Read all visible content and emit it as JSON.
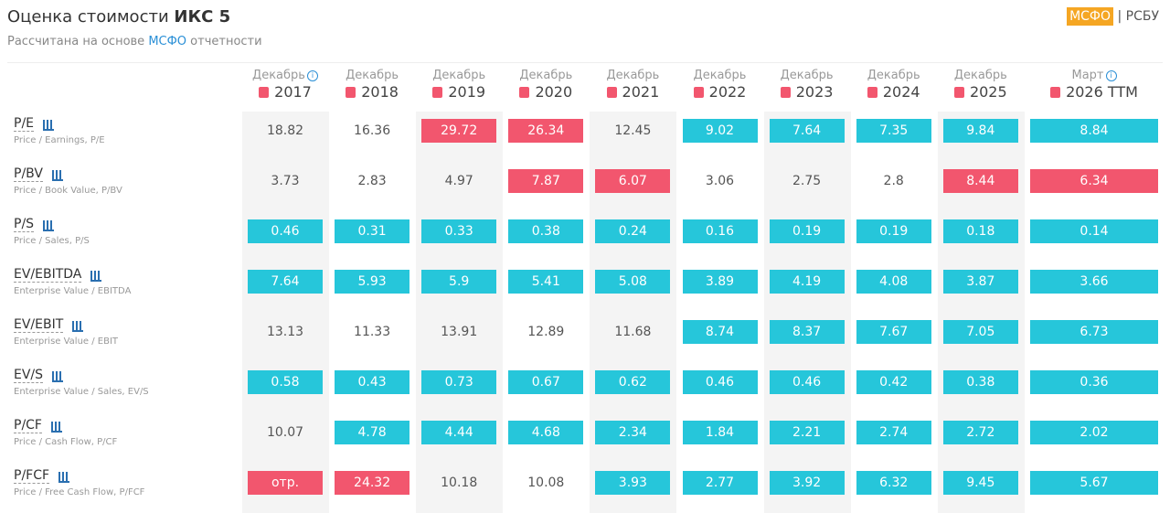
{
  "header": {
    "title": "Оценка стоимости ",
    "company": "ИКС 5",
    "subtitle_pre": "Рассчитана на основе ",
    "subtitle_link": "МСФО",
    "subtitle_post": " отчетности",
    "tabs": [
      "МСФО",
      "РСБУ"
    ]
  },
  "colors": {
    "blue": "#26c6da",
    "red": "#f2566e"
  },
  "columns": [
    {
      "month": "Декабрь",
      "year": "2017",
      "info": true
    },
    {
      "month": "Декабрь",
      "year": "2018"
    },
    {
      "month": "Декабрь",
      "year": "2019"
    },
    {
      "month": "Декабрь",
      "year": "2020"
    },
    {
      "month": "Декабрь",
      "year": "2021"
    },
    {
      "month": "Декабрь",
      "year": "2022"
    },
    {
      "month": "Декабрь",
      "year": "2023"
    },
    {
      "month": "Декабрь",
      "year": "2024"
    },
    {
      "month": "Декабрь",
      "year": "2025"
    },
    {
      "month": "Март",
      "year": "2026 TTM",
      "info": true
    }
  ],
  "rows": [
    {
      "label": "P/E",
      "sub": "Price / Earnings, P/E",
      "cells": [
        {
          "v": 18.82
        },
        {
          "v": 16.36
        },
        {
          "v": 29.72,
          "hl": "red"
        },
        {
          "v": 26.34,
          "hl": "red"
        },
        {
          "v": 12.45
        },
        {
          "v": 9.02,
          "hl": "blue"
        },
        {
          "v": 7.64,
          "hl": "blue"
        },
        {
          "v": 7.35,
          "hl": "blue"
        },
        {
          "v": 9.84,
          "hl": "blue"
        },
        {
          "v": 8.84,
          "hl": "blue"
        }
      ]
    },
    {
      "label": "P/BV",
      "sub": "Price / Book Value, P/BV",
      "cells": [
        {
          "v": 3.73
        },
        {
          "v": 2.83
        },
        {
          "v": 4.97
        },
        {
          "v": 7.87,
          "hl": "red"
        },
        {
          "v": 6.07,
          "hl": "red"
        },
        {
          "v": 3.06
        },
        {
          "v": 2.75
        },
        {
          "v": 2.8
        },
        {
          "v": 8.44,
          "hl": "red"
        },
        {
          "v": 6.34,
          "hl": "red"
        }
      ]
    },
    {
      "label": "P/S",
      "sub": "Price / Sales, P/S",
      "cells": [
        {
          "v": 0.46,
          "hl": "blue"
        },
        {
          "v": 0.31,
          "hl": "blue"
        },
        {
          "v": 0.33,
          "hl": "blue"
        },
        {
          "v": 0.38,
          "hl": "blue"
        },
        {
          "v": 0.24,
          "hl": "blue"
        },
        {
          "v": 0.16,
          "hl": "blue"
        },
        {
          "v": 0.19,
          "hl": "blue"
        },
        {
          "v": 0.19,
          "hl": "blue"
        },
        {
          "v": 0.18,
          "hl": "blue"
        },
        {
          "v": 0.14,
          "hl": "blue"
        }
      ]
    },
    {
      "label": "EV/EBITDA",
      "sub": "Enterprise Value / EBITDA",
      "cells": [
        {
          "v": 7.64,
          "hl": "blue"
        },
        {
          "v": 5.93,
          "hl": "blue"
        },
        {
          "v": 5.9,
          "hl": "blue"
        },
        {
          "v": 5.41,
          "hl": "blue"
        },
        {
          "v": 5.08,
          "hl": "blue"
        },
        {
          "v": 3.89,
          "hl": "blue"
        },
        {
          "v": 4.19,
          "hl": "blue"
        },
        {
          "v": 4.08,
          "hl": "blue"
        },
        {
          "v": 3.87,
          "hl": "blue"
        },
        {
          "v": 3.66,
          "hl": "blue"
        }
      ]
    },
    {
      "label": "EV/EBIT",
      "sub": "Enterprise Value / EBIT",
      "cells": [
        {
          "v": 13.13
        },
        {
          "v": 11.33
        },
        {
          "v": 13.91
        },
        {
          "v": 12.89
        },
        {
          "v": 11.68
        },
        {
          "v": 8.74,
          "hl": "blue"
        },
        {
          "v": 8.37,
          "hl": "blue"
        },
        {
          "v": 7.67,
          "hl": "blue"
        },
        {
          "v": 7.05,
          "hl": "blue"
        },
        {
          "v": 6.73,
          "hl": "blue"
        }
      ]
    },
    {
      "label": "EV/S",
      "sub": "Enterprise Value / Sales, EV/S",
      "cells": [
        {
          "v": 0.58,
          "hl": "blue"
        },
        {
          "v": 0.43,
          "hl": "blue"
        },
        {
          "v": 0.73,
          "hl": "blue"
        },
        {
          "v": 0.67,
          "hl": "blue"
        },
        {
          "v": 0.62,
          "hl": "blue"
        },
        {
          "v": 0.46,
          "hl": "blue"
        },
        {
          "v": 0.46,
          "hl": "blue"
        },
        {
          "v": 0.42,
          "hl": "blue"
        },
        {
          "v": 0.38,
          "hl": "blue"
        },
        {
          "v": 0.36,
          "hl": "blue"
        }
      ]
    },
    {
      "label": "P/CF",
      "sub": "Price / Cash Flow, P/CF",
      "cells": [
        {
          "v": 10.07
        },
        {
          "v": 4.78,
          "hl": "blue"
        },
        {
          "v": 4.44,
          "hl": "blue"
        },
        {
          "v": 4.68,
          "hl": "blue"
        },
        {
          "v": 2.34,
          "hl": "blue"
        },
        {
          "v": 1.84,
          "hl": "blue"
        },
        {
          "v": 2.21,
          "hl": "blue"
        },
        {
          "v": 2.74,
          "hl": "blue"
        },
        {
          "v": 2.72,
          "hl": "blue"
        },
        {
          "v": 2.02,
          "hl": "blue"
        }
      ]
    },
    {
      "label": "P/FCF",
      "sub": "Price / Free Cash Flow, P/FCF",
      "cells": [
        {
          "v": "отр.",
          "hl": "red"
        },
        {
          "v": 24.32,
          "hl": "red"
        },
        {
          "v": 10.18
        },
        {
          "v": 10.08
        },
        {
          "v": 3.93,
          "hl": "blue"
        },
        {
          "v": 2.77,
          "hl": "blue"
        },
        {
          "v": 3.92,
          "hl": "blue"
        },
        {
          "v": 6.32,
          "hl": "blue"
        },
        {
          "v": 9.45,
          "hl": "blue"
        },
        {
          "v": 5.67,
          "hl": "blue"
        }
      ]
    }
  ]
}
